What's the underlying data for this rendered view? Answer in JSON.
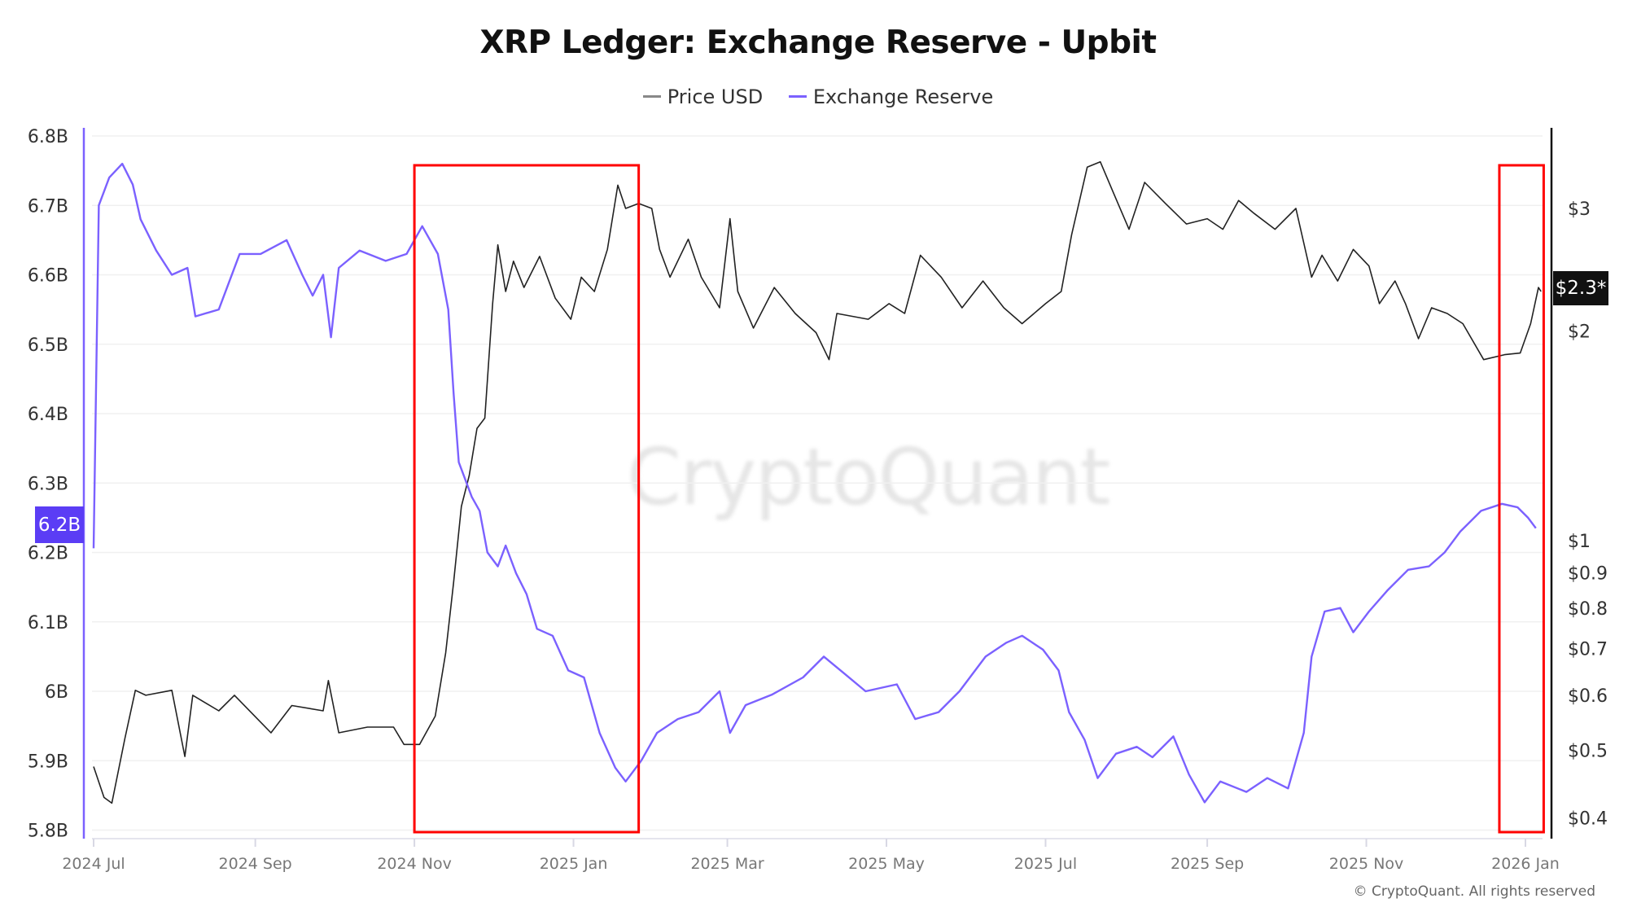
{
  "chart_data": {
    "type": "line",
    "title": "XRP Ledger: Exchange Reserve - Upbit",
    "legend": [
      "Price USD",
      "Exchange Reserve"
    ],
    "legend_position": "top-center",
    "grid": true,
    "x_ticks": [
      "2024 Jul",
      "2024 Sep",
      "2024 Nov",
      "2025 Jan",
      "2025 Mar",
      "2025 May",
      "2025 Jul",
      "2025 Sep",
      "2025 Nov",
      "2026 Jan"
    ],
    "x_tick_dates": [
      "2024-07-01",
      "2024-09-01",
      "2024-11-01",
      "2025-01-01",
      "2025-03-01",
      "2025-05-01",
      "2025-07-01",
      "2025-09-01",
      "2025-11-01",
      "2026-01-01"
    ],
    "xlim": [
      "2024-07-01",
      "2026-01-08"
    ],
    "left_axis": {
      "ticks": [
        "6.8B",
        "6.7B",
        "6.6B",
        "6.5B",
        "6.4B",
        "6.3B",
        "6.2B",
        "6.1B",
        "6B",
        "5.9B",
        "5.8B"
      ],
      "tick_values": [
        6.8,
        6.7,
        6.6,
        6.5,
        6.4,
        6.3,
        6.2,
        6.1,
        6.0,
        5.9,
        5.8
      ],
      "ylim": [
        5.8,
        6.8
      ],
      "unit": "B",
      "current_label": "6.2B",
      "color": "#7b61ff"
    },
    "right_axis": {
      "scale": "log",
      "ticks": [
        "$3",
        "$2",
        "$1",
        "$0.9",
        "$0.8",
        "$0.7",
        "$0.6",
        "$0.5",
        "$0.4"
      ],
      "tick_values": [
        3,
        2,
        1,
        0.9,
        0.8,
        0.7,
        0.6,
        0.5,
        0.4
      ],
      "current_label": "$2.3*",
      "color": "#111111"
    },
    "annotations": [
      {
        "type": "rectangle",
        "color": "#ff0000",
        "from": "2024-11-01",
        "to": "2025-01-26"
      },
      {
        "type": "rectangle",
        "color": "#ff0000",
        "from": "2025-12-22",
        "to": "2026-01-08"
      }
    ],
    "series": [
      {
        "name": "Price USD",
        "axis": "right",
        "color": "#222222",
        "points": [
          [
            "2024-07-01",
            0.474
          ],
          [
            "2024-07-05",
            0.428
          ],
          [
            "2024-07-08",
            0.42
          ],
          [
            "2024-07-13",
            0.52
          ],
          [
            "2024-07-17",
            0.61
          ],
          [
            "2024-07-21",
            0.6
          ],
          [
            "2024-07-31",
            0.61
          ],
          [
            "2024-08-05",
            0.49
          ],
          [
            "2024-08-08",
            0.6
          ],
          [
            "2024-08-18",
            0.57
          ],
          [
            "2024-08-24",
            0.6
          ],
          [
            "2024-09-07",
            0.53
          ],
          [
            "2024-09-15",
            0.58
          ],
          [
            "2024-09-27",
            0.57
          ],
          [
            "2024-09-29",
            0.63
          ],
          [
            "2024-10-03",
            0.53
          ],
          [
            "2024-10-14",
            0.54
          ],
          [
            "2024-10-24",
            0.54
          ],
          [
            "2024-10-28",
            0.51
          ],
          [
            "2024-11-03",
            0.51
          ],
          [
            "2024-11-09",
            0.56
          ],
          [
            "2024-11-13",
            0.69
          ],
          [
            "2024-11-16",
            0.87
          ],
          [
            "2024-11-19",
            1.12
          ],
          [
            "2024-11-22",
            1.24
          ],
          [
            "2024-11-25",
            1.45
          ],
          [
            "2024-11-28",
            1.5
          ],
          [
            "2024-12-01",
            2.19
          ],
          [
            "2024-12-03",
            2.66
          ],
          [
            "2024-12-06",
            2.28
          ],
          [
            "2024-12-09",
            2.52
          ],
          [
            "2024-12-13",
            2.31
          ],
          [
            "2024-12-19",
            2.56
          ],
          [
            "2024-12-25",
            2.23
          ],
          [
            "2024-12-31",
            2.08
          ],
          [
            "2025-01-04",
            2.39
          ],
          [
            "2025-01-09",
            2.28
          ],
          [
            "2025-01-14",
            2.62
          ],
          [
            "2025-01-18",
            3.24
          ],
          [
            "2025-01-21",
            3.0
          ],
          [
            "2025-01-26",
            3.05
          ],
          [
            "2025-01-31",
            3.0
          ],
          [
            "2025-02-03",
            2.62
          ],
          [
            "2025-02-07",
            2.39
          ],
          [
            "2025-02-14",
            2.71
          ],
          [
            "2025-02-19",
            2.39
          ],
          [
            "2025-02-26",
            2.16
          ],
          [
            "2025-03-02",
            2.9
          ],
          [
            "2025-03-05",
            2.28
          ],
          [
            "2025-03-11",
            2.02
          ],
          [
            "2025-03-19",
            2.31
          ],
          [
            "2025-03-27",
            2.12
          ],
          [
            "2025-04-04",
            1.99
          ],
          [
            "2025-04-09",
            1.82
          ],
          [
            "2025-04-12",
            2.12
          ],
          [
            "2025-04-24",
            2.08
          ],
          [
            "2025-05-02",
            2.19
          ],
          [
            "2025-05-08",
            2.12
          ],
          [
            "2025-05-14",
            2.57
          ],
          [
            "2025-05-22",
            2.39
          ],
          [
            "2025-05-30",
            2.16
          ],
          [
            "2025-06-07",
            2.36
          ],
          [
            "2025-06-15",
            2.16
          ],
          [
            "2025-06-22",
            2.05
          ],
          [
            "2025-07-01",
            2.19
          ],
          [
            "2025-07-07",
            2.28
          ],
          [
            "2025-07-11",
            2.75
          ],
          [
            "2025-07-17",
            3.44
          ],
          [
            "2025-07-22",
            3.5
          ],
          [
            "2025-07-27",
            3.16
          ],
          [
            "2025-08-02",
            2.8
          ],
          [
            "2025-08-08",
            3.27
          ],
          [
            "2025-08-16",
            3.05
          ],
          [
            "2025-08-24",
            2.85
          ],
          [
            "2025-09-01",
            2.9
          ],
          [
            "2025-09-07",
            2.8
          ],
          [
            "2025-09-13",
            3.08
          ],
          [
            "2025-09-19",
            2.95
          ],
          [
            "2025-09-27",
            2.8
          ],
          [
            "2025-10-05",
            3.0
          ],
          [
            "2025-10-11",
            2.39
          ],
          [
            "2025-10-15",
            2.57
          ],
          [
            "2025-10-21",
            2.36
          ],
          [
            "2025-10-27",
            2.62
          ],
          [
            "2025-11-02",
            2.48
          ],
          [
            "2025-11-06",
            2.19
          ],
          [
            "2025-11-12",
            2.36
          ],
          [
            "2025-11-16",
            2.19
          ],
          [
            "2025-11-21",
            1.95
          ],
          [
            "2025-11-26",
            2.16
          ],
          [
            "2025-12-02",
            2.12
          ],
          [
            "2025-12-08",
            2.05
          ],
          [
            "2025-12-16",
            1.82
          ],
          [
            "2025-12-24",
            1.85
          ],
          [
            "2025-12-30",
            1.86
          ],
          [
            "2026-01-03",
            2.05
          ],
          [
            "2026-01-06",
            2.31
          ],
          [
            "2026-01-07",
            2.28
          ]
        ]
      },
      {
        "name": "Exchange Reserve",
        "axis": "left",
        "color": "#7b61ff",
        "points": [
          [
            "2024-07-01",
            6.206
          ],
          [
            "2024-07-03",
            6.7
          ],
          [
            "2024-07-07",
            6.74
          ],
          [
            "2024-07-12",
            6.76
          ],
          [
            "2024-07-16",
            6.73
          ],
          [
            "2024-07-19",
            6.68
          ],
          [
            "2024-07-25",
            6.635
          ],
          [
            "2024-07-31",
            6.6
          ],
          [
            "2024-08-06",
            6.61
          ],
          [
            "2024-08-09",
            6.54
          ],
          [
            "2024-08-18",
            6.55
          ],
          [
            "2024-08-26",
            6.63
          ],
          [
            "2024-09-03",
            6.63
          ],
          [
            "2024-09-13",
            6.65
          ],
          [
            "2024-09-19",
            6.6
          ],
          [
            "2024-09-23",
            6.57
          ],
          [
            "2024-09-27",
            6.6
          ],
          [
            "2024-09-30",
            6.51
          ],
          [
            "2024-10-03",
            6.61
          ],
          [
            "2024-10-11",
            6.635
          ],
          [
            "2024-10-21",
            6.62
          ],
          [
            "2024-10-29",
            6.63
          ],
          [
            "2024-11-04",
            6.67
          ],
          [
            "2024-11-10",
            6.63
          ],
          [
            "2024-11-14",
            6.55
          ],
          [
            "2024-11-16",
            6.43
          ],
          [
            "2024-11-18",
            6.33
          ],
          [
            "2024-11-20",
            6.31
          ],
          [
            "2024-11-23",
            6.28
          ],
          [
            "2024-11-26",
            6.26
          ],
          [
            "2024-11-29",
            6.2
          ],
          [
            "2024-12-03",
            6.18
          ],
          [
            "2024-12-06",
            6.21
          ],
          [
            "2024-12-10",
            6.17
          ],
          [
            "2024-12-14",
            6.14
          ],
          [
            "2024-12-18",
            6.09
          ],
          [
            "2024-12-24",
            6.08
          ],
          [
            "2024-12-30",
            6.03
          ],
          [
            "2025-01-05",
            6.02
          ],
          [
            "2025-01-11",
            5.94
          ],
          [
            "2025-01-17",
            5.89
          ],
          [
            "2025-01-21",
            5.87
          ],
          [
            "2025-01-27",
            5.9
          ],
          [
            "2025-02-02",
            5.94
          ],
          [
            "2025-02-10",
            5.96
          ],
          [
            "2025-02-18",
            5.97
          ],
          [
            "2025-02-26",
            6.0
          ],
          [
            "2025-03-02",
            5.94
          ],
          [
            "2025-03-08",
            5.98
          ],
          [
            "2025-03-18",
            5.995
          ],
          [
            "2025-03-30",
            6.02
          ],
          [
            "2025-04-07",
            6.05
          ],
          [
            "2025-04-15",
            6.025
          ],
          [
            "2025-04-23",
            6.0
          ],
          [
            "2025-05-05",
            6.01
          ],
          [
            "2025-05-12",
            5.96
          ],
          [
            "2025-05-21",
            5.97
          ],
          [
            "2025-05-29",
            6.0
          ],
          [
            "2025-06-08",
            6.05
          ],
          [
            "2025-06-16",
            6.07
          ],
          [
            "2025-06-22",
            6.08
          ],
          [
            "2025-06-30",
            6.06
          ],
          [
            "2025-07-06",
            6.03
          ],
          [
            "2025-07-10",
            5.97
          ],
          [
            "2025-07-16",
            5.93
          ],
          [
            "2025-07-21",
            5.875
          ],
          [
            "2025-07-28",
            5.91
          ],
          [
            "2025-08-05",
            5.92
          ],
          [
            "2025-08-11",
            5.905
          ],
          [
            "2025-08-19",
            5.935
          ],
          [
            "2025-08-25",
            5.88
          ],
          [
            "2025-08-31",
            5.84
          ],
          [
            "2025-09-06",
            5.87
          ],
          [
            "2025-09-16",
            5.855
          ],
          [
            "2025-09-24",
            5.875
          ],
          [
            "2025-10-02",
            5.86
          ],
          [
            "2025-10-08",
            5.94
          ],
          [
            "2025-10-11",
            6.05
          ],
          [
            "2025-10-16",
            6.115
          ],
          [
            "2025-10-22",
            6.12
          ],
          [
            "2025-10-27",
            6.085
          ],
          [
            "2025-11-02",
            6.115
          ],
          [
            "2025-11-09",
            6.145
          ],
          [
            "2025-11-17",
            6.175
          ],
          [
            "2025-11-25",
            6.18
          ],
          [
            "2025-12-01",
            6.2
          ],
          [
            "2025-12-07",
            6.23
          ],
          [
            "2025-12-15",
            6.26
          ],
          [
            "2025-12-23",
            6.27
          ],
          [
            "2025-12-29",
            6.265
          ],
          [
            "2026-01-02",
            6.25
          ],
          [
            "2026-01-05",
            6.235
          ]
        ]
      }
    ]
  },
  "watermark": "CryptoQuant",
  "copyright": "© CryptoQuant. All rights reserved"
}
